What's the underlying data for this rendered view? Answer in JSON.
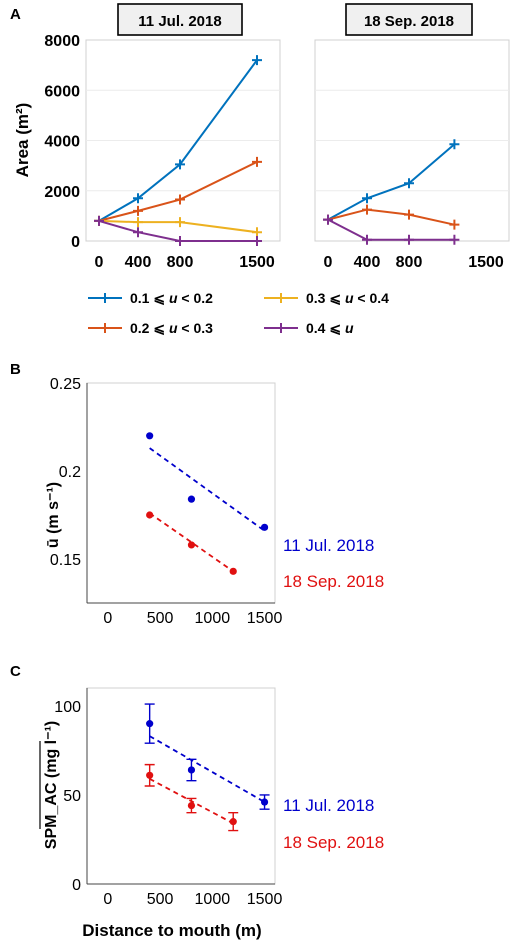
{
  "panel_labels": {
    "a": "A",
    "b": "B",
    "c": "C"
  },
  "colors": {
    "s1": "#0072BD",
    "s2": "#D95319",
    "s3": "#EDB120",
    "s4": "#7E2F8E",
    "blue": "#0000CC",
    "red": "#E01010"
  },
  "legend_a": [
    {
      "range": "0.1 ⩽ ",
      "mid": "u",
      "end": " < 0.2",
      "color": "#0072BD"
    },
    {
      "range": "0.3 ⩽ ",
      "mid": "u",
      "end": " < 0.4",
      "color": "#EDB120"
    },
    {
      "range": "0.2 ⩽ ",
      "mid": "u",
      "end": " < 0.3",
      "color": "#D95319"
    },
    {
      "range": "0.4 ⩽ ",
      "mid": "u",
      "end": "",
      "color": "#7E2F8E"
    }
  ],
  "chart_data": [
    {
      "type": "line",
      "title": "11 Jul. 2018",
      "ylabel": "Area (m²)",
      "ylim": [
        0,
        8000
      ],
      "xticks": [
        "0",
        "400",
        "800",
        "1500"
      ],
      "x": [
        0,
        400,
        800,
        1500
      ],
      "series": [
        {
          "name": "0.1 ⩽ u < 0.2",
          "values": [
            800,
            1700,
            3050,
            7200
          ]
        },
        {
          "name": "0.2 ⩽ u < 0.3",
          "values": [
            800,
            1200,
            1650,
            3150
          ]
        },
        {
          "name": "0.3 ⩽ u < 0.4",
          "values": [
            800,
            750,
            750,
            350
          ]
        },
        {
          "name": "0.4 ⩽ u",
          "values": [
            800,
            350,
            0,
            0
          ]
        }
      ]
    },
    {
      "type": "line",
      "title": "18 Sep. 2018",
      "ylim": [
        0,
        8000
      ],
      "xticks": [
        "0",
        "400",
        "800",
        "1500"
      ],
      "x": [
        0,
        400,
        800,
        1200
      ],
      "series": [
        {
          "name": "0.1 ⩽ u < 0.2",
          "values": [
            850,
            1700,
            2300,
            3850
          ]
        },
        {
          "name": "0.2 ⩽ u < 0.3",
          "values": [
            850,
            1250,
            1050,
            650
          ]
        },
        {
          "name": "0.4 ⩽ u",
          "values": [
            850,
            50,
            50,
            50
          ]
        }
      ]
    },
    {
      "type": "scatter",
      "ylabel": "ū (m s⁻¹)",
      "xlim": [
        -200,
        1600
      ],
      "ylim": [
        0.125,
        0.25
      ],
      "xticks": [
        0,
        500,
        1000,
        1500
      ],
      "yticks": [
        0.15,
        0.2,
        0.25
      ],
      "series": [
        {
          "name": "11 Jul. 2018",
          "x": [
            400,
            800,
            1500
          ],
          "values": [
            0.22,
            0.184,
            0.168
          ],
          "trend": [
            [
              400,
              0.213
            ],
            [
              1500,
              0.166
            ]
          ]
        },
        {
          "name": "18 Sep. 2018",
          "x": [
            400,
            800,
            1200
          ],
          "values": [
            0.175,
            0.158,
            0.143
          ],
          "trend": [
            [
              400,
              0.176
            ],
            [
              1200,
              0.143
            ]
          ]
        }
      ]
    },
    {
      "type": "scatter",
      "ylabel": "SPM_AC (mg l⁻¹)",
      "xlabel": "Distance to mouth (m)",
      "xlim": [
        -200,
        1600
      ],
      "ylim": [
        0,
        110
      ],
      "xticks": [
        0,
        500,
        1000,
        1500
      ],
      "yticks": [
        0,
        50,
        100
      ],
      "series": [
        {
          "name": "11 Jul. 2018",
          "x": [
            400,
            800,
            1500
          ],
          "values": [
            90,
            64,
            46
          ],
          "err": [
            11,
            6,
            4
          ],
          "trend": [
            [
              400,
              83
            ],
            [
              1500,
              46
            ]
          ]
        },
        {
          "name": "18 Sep. 2018",
          "x": [
            400,
            800,
            1200
          ],
          "values": [
            61,
            44,
            35
          ],
          "err": [
            6,
            4,
            5
          ],
          "trend": [
            [
              400,
              59
            ],
            [
              1200,
              34
            ]
          ]
        }
      ]
    }
  ]
}
